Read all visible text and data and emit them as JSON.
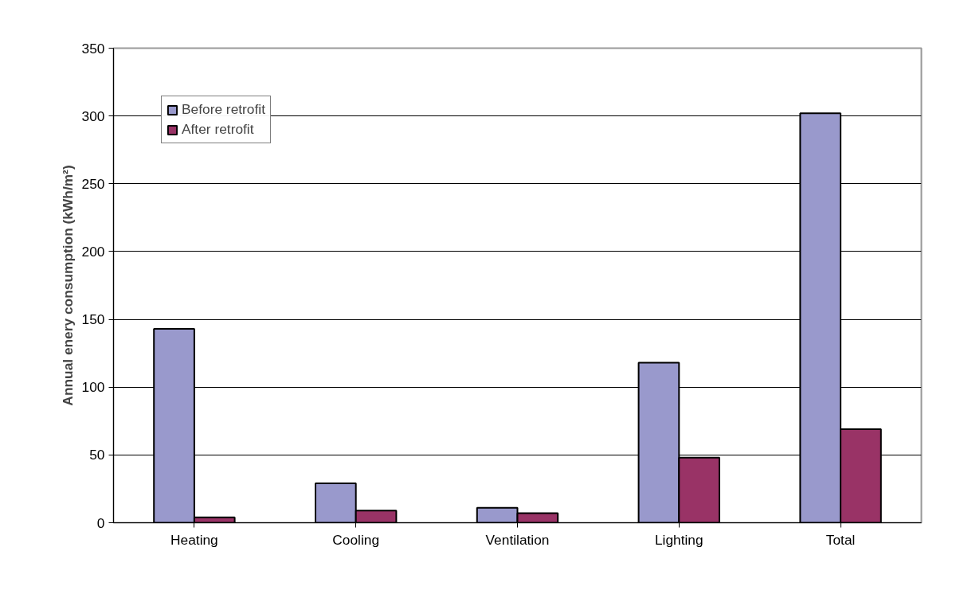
{
  "chart_data": {
    "type": "bar",
    "ylabel": "Annual enery consumption (kWh/m²)",
    "categories": [
      "Heating",
      "Cooling",
      "Ventilation",
      "Lighting",
      "Total"
    ],
    "series": [
      {
        "name": "Before retrofit",
        "color": "#9999cc",
        "values": [
          143,
          29,
          11,
          118,
          302
        ]
      },
      {
        "name": "After retrofit",
        "color": "#993366",
        "values": [
          4,
          9,
          7,
          48,
          69
        ]
      }
    ],
    "ylim": [
      0,
      350
    ],
    "yticks": [
      0,
      50,
      100,
      150,
      200,
      250,
      300,
      350
    ],
    "grid": "y",
    "legend": "top left"
  }
}
